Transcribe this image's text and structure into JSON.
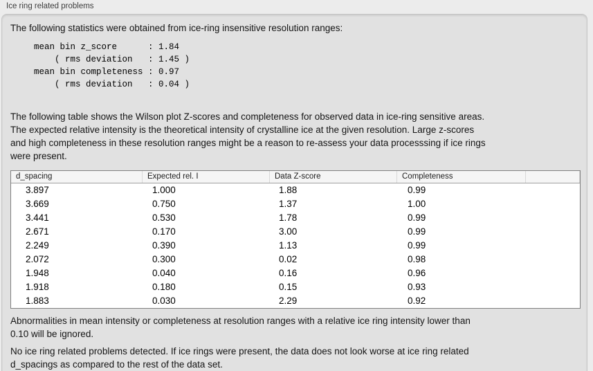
{
  "panel": {
    "title": "Ice ring related problems"
  },
  "content": {
    "intro": "The following statistics were obtained from ice-ring insensitive resolution ranges:",
    "stats_block": "mean bin z_score      : 1.84\n    ( rms deviation   : 1.45 )\nmean bin completeness : 0.97\n    ( rms deviation   : 0.04 )",
    "table_description": "The following table shows the Wilson plot Z-scores and completeness for observed data in ice-ring sensitive areas.\nThe expected relative intensity is the theoretical intensity of crystalline ice at the given resolution. Large z-scores\nand high completeness in these resolution ranges might be a reason to re-assess your data processsing if ice rings\nwere present.",
    "note_ignore": "Abnormalities in mean intensity or completeness at resolution ranges with a relative ice ring intensity lower than\n0.10 will be ignored.",
    "conclusion": "No ice ring related problems detected. If ice rings were present, the data does not look worse at ice ring related\nd_spacings as compared to the rest of the data set."
  },
  "table": {
    "columns": [
      "d_spacing",
      "Expected rel. I",
      "Data Z-score",
      "Completeness"
    ],
    "rows": [
      {
        "d_spacing": "3.897",
        "expected_rel_i": "1.000",
        "data_z_score": "1.88",
        "completeness": "0.99"
      },
      {
        "d_spacing": "3.669",
        "expected_rel_i": "0.750",
        "data_z_score": "1.37",
        "completeness": "1.00"
      },
      {
        "d_spacing": "3.441",
        "expected_rel_i": "0.530",
        "data_z_score": "1.78",
        "completeness": "0.99"
      },
      {
        "d_spacing": "2.671",
        "expected_rel_i": "0.170",
        "data_z_score": "3.00",
        "completeness": "0.99"
      },
      {
        "d_spacing": "2.249",
        "expected_rel_i": "0.390",
        "data_z_score": "1.13",
        "completeness": "0.99"
      },
      {
        "d_spacing": "2.072",
        "expected_rel_i": "0.300",
        "data_z_score": "0.02",
        "completeness": "0.98"
      },
      {
        "d_spacing": "1.948",
        "expected_rel_i": "0.040",
        "data_z_score": "0.16",
        "completeness": "0.96"
      },
      {
        "d_spacing": "1.918",
        "expected_rel_i": "0.180",
        "data_z_score": "0.15",
        "completeness": "0.93"
      },
      {
        "d_spacing": "1.883",
        "expected_rel_i": "0.030",
        "data_z_score": "2.29",
        "completeness": "0.92"
      }
    ]
  },
  "colors": {
    "window_background": "#ececec",
    "groupbox_background": "#e1e1e1",
    "groupbox_border": "#c6c6c6",
    "table_background": "#ffffff",
    "table_border": "#7f7f7f",
    "table_header_background": "#f5f5f5",
    "text": "#141414"
  }
}
